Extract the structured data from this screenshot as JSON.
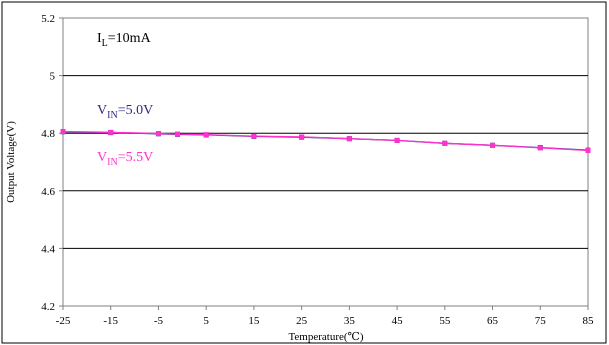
{
  "chart_data": {
    "type": "line",
    "x": [
      -25,
      -15,
      -5,
      -1,
      5,
      15,
      25,
      35,
      45,
      55,
      65,
      75,
      85
    ],
    "xticks": [
      -25,
      -15,
      -5,
      5,
      15,
      25,
      35,
      45,
      55,
      65,
      75,
      85
    ],
    "xlim": [
      -25,
      85
    ],
    "yticks": [
      4.2,
      4.4,
      4.6,
      4.8,
      5,
      5.2
    ],
    "ylim": [
      4.2,
      5.2
    ],
    "grid": "horizontal",
    "xlabel": "Temperature(℃)",
    "ylabel": "Output Voltage(V)",
    "series": [
      {
        "name": "VIN=5.0V",
        "color": "#2a2a8a",
        "values": [
          4.805,
          4.802,
          4.798,
          4.796,
          4.794,
          4.789,
          4.786,
          4.781,
          4.775,
          4.765,
          4.758,
          4.75,
          4.741
        ]
      },
      {
        "name": "VIN=5.5V",
        "color": "#ff33cc",
        "values": [
          4.806,
          4.803,
          4.799,
          4.797,
          4.795,
          4.79,
          4.787,
          4.781,
          4.775,
          4.765,
          4.758,
          4.749,
          4.74
        ]
      }
    ],
    "annotations": {
      "il": {
        "main": "I",
        "sub": "L",
        "rest": "=10mA",
        "color": "#000000"
      },
      "vin50": {
        "main": "V",
        "sub": "IN",
        "rest": "=5.0V",
        "color": "#2a2a8a"
      },
      "vin55": {
        "main": "V",
        "sub": "IN",
        "rest": "=5.5V",
        "color": "#ff33cc"
      }
    }
  }
}
